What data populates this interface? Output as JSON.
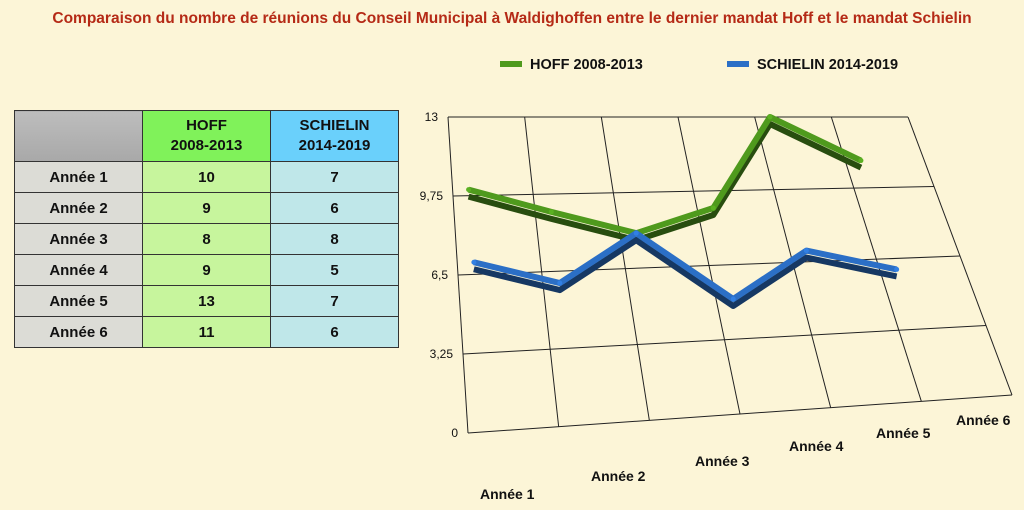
{
  "title": "Comparaison du nombre de réunions du Conseil Municipal à Waldighoffen entre le dernier mandat Hoff et le mandat Schielin",
  "table": {
    "headers": [
      [
        "HOFF",
        "2008-2013"
      ],
      [
        "SCHIELIN",
        "2014-2019"
      ]
    ],
    "rows": [
      {
        "label": "Année 1",
        "hoff": "10",
        "schielin": "7"
      },
      {
        "label": "Année 2",
        "hoff": "9",
        "schielin": "6"
      },
      {
        "label": "Année 3",
        "hoff": "8",
        "schielin": "8"
      },
      {
        "label": "Année 4",
        "hoff": "9",
        "schielin": "5"
      },
      {
        "label": "Année 5",
        "hoff": "13",
        "schielin": "7"
      },
      {
        "label": "Année 6",
        "hoff": "11",
        "schielin": "6"
      }
    ]
  },
  "chart_data": {
    "type": "line",
    "categories": [
      "Année 1",
      "Année 2",
      "Année 3",
      "Année 4",
      "Année 5",
      "Année 6"
    ],
    "series": [
      {
        "name": "HOFF 2008-2013",
        "values": [
          10,
          9,
          8,
          9,
          13,
          11
        ],
        "color": "#4f9a1d"
      },
      {
        "name": "SCHIELIN 2014-2019",
        "values": [
          7,
          6,
          8,
          5,
          7,
          6
        ],
        "color": "#2b6fc6"
      }
    ],
    "ylim": [
      0,
      13
    ],
    "yticks": [
      "0",
      "3,25",
      "6,5",
      "9,75",
      "13"
    ],
    "grid": true,
    "legend": "top",
    "style": "3d-perspective"
  }
}
